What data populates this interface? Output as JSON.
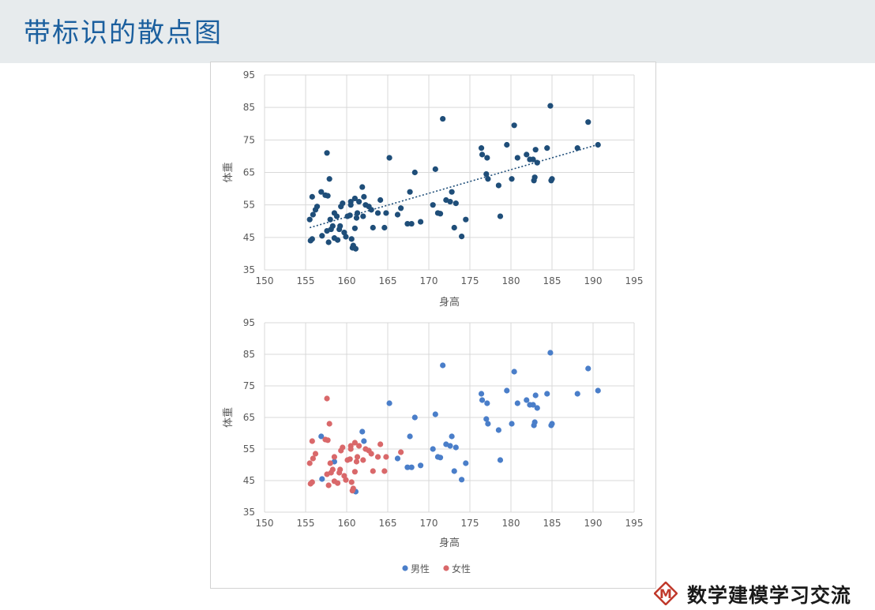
{
  "page": {
    "title": "带标识的散点图",
    "logo_text": "数学建模学习交流",
    "logo_letter": "M",
    "colors": {
      "header_bg": "#e7ebed",
      "title": "#1b5f9e",
      "top_points": "#1f4e79",
      "male": "#4a7ec9",
      "female": "#d9686a",
      "logo_red": "#c0392b"
    }
  },
  "chart_data": [
    {
      "type": "scatter",
      "title": "",
      "xlabel": "身高",
      "ylabel": "体重",
      "xlim": [
        150,
        195
      ],
      "ylim": [
        35,
        95
      ],
      "xticks": [
        "150",
        "155",
        "160",
        "165",
        "170",
        "175",
        "180",
        "185",
        "190",
        "195"
      ],
      "yticks": [
        "95",
        "85",
        "75",
        "65",
        "55",
        "45",
        "35"
      ],
      "grid": true,
      "trendline": {
        "style": "dotted",
        "x": [
          155.5,
          190.5
        ],
        "y": [
          48.0,
          73.5
        ]
      },
      "series": [
        {
          "color": "#1f4e79",
          "points": [
            [
              155.6,
              44
            ],
            [
              155.8,
              44.5
            ],
            [
              155.5,
              50.5
            ],
            [
              155.9,
              52
            ],
            [
              156.2,
              53.5
            ],
            [
              156.4,
              54.5
            ],
            [
              155.8,
              57.5
            ],
            [
              156.9,
              59
            ],
            [
              157.4,
              58
            ],
            [
              157.7,
              57.8
            ],
            [
              157.6,
              71
            ],
            [
              157.9,
              63
            ],
            [
              157.6,
              47
            ],
            [
              157.0,
              45.5
            ],
            [
              157.8,
              43.5
            ],
            [
              158.1,
              47.5
            ],
            [
              158.3,
              48.5
            ],
            [
              158.0,
              50.5
            ],
            [
              158.5,
              52.5
            ],
            [
              158.8,
              51.5
            ],
            [
              158.5,
              44.8
            ],
            [
              158.9,
              44.2
            ],
            [
              159.1,
              47.5
            ],
            [
              159.2,
              48.5
            ],
            [
              159.3,
              54.5
            ],
            [
              159.5,
              55.5
            ],
            [
              159.7,
              46.5
            ],
            [
              159.9,
              45.2
            ],
            [
              160.1,
              51.5
            ],
            [
              160.4,
              51.8
            ],
            [
              160.5,
              56
            ],
            [
              160.5,
              55
            ],
            [
              160.6,
              44.5
            ],
            [
              160.8,
              42.5
            ],
            [
              160.7,
              41.8
            ],
            [
              161.1,
              41.5
            ],
            [
              161.0,
              47.8
            ],
            [
              161.2,
              51
            ],
            [
              161.3,
              52.5
            ],
            [
              161.5,
              56
            ],
            [
              161.0,
              57
            ],
            [
              161.9,
              60.5
            ],
            [
              162.1,
              57.5
            ],
            [
              162.0,
              51.5
            ],
            [
              162.3,
              55
            ],
            [
              162.7,
              54.5
            ],
            [
              163.0,
              53.5
            ],
            [
              163.2,
              48
            ],
            [
              163.8,
              52.5
            ],
            [
              164.1,
              56.5
            ],
            [
              164.6,
              48
            ],
            [
              164.8,
              52.5
            ],
            [
              165.2,
              69.5
            ],
            [
              166.2,
              52
            ],
            [
              166.6,
              54
            ],
            [
              167.4,
              49.2
            ],
            [
              167.7,
              59
            ],
            [
              167.9,
              49.2
            ],
            [
              168.3,
              65
            ],
            [
              169.0,
              49.8
            ],
            [
              170.5,
              55
            ],
            [
              170.8,
              66
            ],
            [
              171.1,
              52.5
            ],
            [
              171.4,
              52.3
            ],
            [
              171.7,
              81.5
            ],
            [
              172.1,
              56.5
            ],
            [
              172.6,
              56
            ],
            [
              172.8,
              59
            ],
            [
              173.1,
              48
            ],
            [
              173.3,
              55.5
            ],
            [
              174.0,
              45.3
            ],
            [
              174.5,
              50.5
            ],
            [
              176.4,
              72.5
            ],
            [
              176.5,
              70.5
            ],
            [
              177.0,
              64.5
            ],
            [
              177.2,
              63
            ],
            [
              177.1,
              69.5
            ],
            [
              178.5,
              61
            ],
            [
              178.7,
              51.5
            ],
            [
              179.5,
              73.5
            ],
            [
              180.1,
              63
            ],
            [
              180.4,
              79.5
            ],
            [
              180.8,
              69.5
            ],
            [
              181.9,
              70.5
            ],
            [
              182.3,
              69
            ],
            [
              182.7,
              69
            ],
            [
              182.8,
              62.5
            ],
            [
              182.9,
              63.5
            ],
            [
              183.0,
              72
            ],
            [
              183.2,
              68
            ],
            [
              184.4,
              72.5
            ],
            [
              184.8,
              85.5
            ],
            [
              184.9,
              62.5
            ],
            [
              185.0,
              63
            ],
            [
              188.1,
              72.5
            ],
            [
              189.4,
              80.5
            ],
            [
              190.6,
              73.5
            ]
          ]
        }
      ]
    },
    {
      "type": "scatter",
      "title": "",
      "xlabel": "身高",
      "ylabel": "体重",
      "xlim": [
        150,
        195
      ],
      "ylim": [
        35,
        95
      ],
      "xticks": [
        "150",
        "155",
        "160",
        "165",
        "170",
        "175",
        "180",
        "185",
        "190",
        "195"
      ],
      "yticks": [
        "95",
        "85",
        "75",
        "65",
        "55",
        "45",
        "35"
      ],
      "grid": true,
      "legend": "bottom",
      "series": [
        {
          "name": "男性",
          "color": "#4a7ec9",
          "points": [
            [
              156.9,
              59
            ],
            [
              157.0,
              45.5
            ],
            [
              158.5,
              51
            ],
            [
              161.1,
              41.5
            ],
            [
              161.9,
              60.5
            ],
            [
              162.1,
              57.5
            ],
            [
              165.2,
              69.5
            ],
            [
              166.2,
              52
            ],
            [
              167.4,
              49.2
            ],
            [
              167.7,
              59
            ],
            [
              167.9,
              49.2
            ],
            [
              168.3,
              65
            ],
            [
              169.0,
              49.8
            ],
            [
              170.5,
              55
            ],
            [
              170.8,
              66
            ],
            [
              171.1,
              52.5
            ],
            [
              171.4,
              52.3
            ],
            [
              171.7,
              81.5
            ],
            [
              172.1,
              56.5
            ],
            [
              172.6,
              56
            ],
            [
              172.8,
              59
            ],
            [
              173.1,
              48
            ],
            [
              173.3,
              55.5
            ],
            [
              174.0,
              45.3
            ],
            [
              174.5,
              50.5
            ],
            [
              176.4,
              72.5
            ],
            [
              176.5,
              70.5
            ],
            [
              177.0,
              64.5
            ],
            [
              177.2,
              63
            ],
            [
              177.1,
              69.5
            ],
            [
              178.5,
              61
            ],
            [
              178.7,
              51.5
            ],
            [
              179.5,
              73.5
            ],
            [
              180.1,
              63
            ],
            [
              180.4,
              79.5
            ],
            [
              180.8,
              69.5
            ],
            [
              181.9,
              70.5
            ],
            [
              182.3,
              69
            ],
            [
              182.7,
              69
            ],
            [
              182.8,
              62.5
            ],
            [
              182.9,
              63.5
            ],
            [
              183.0,
              72
            ],
            [
              183.2,
              68
            ],
            [
              184.4,
              72.5
            ],
            [
              184.8,
              85.5
            ],
            [
              184.9,
              62.5
            ],
            [
              185.0,
              63
            ],
            [
              188.1,
              72.5
            ],
            [
              189.4,
              80.5
            ],
            [
              190.6,
              73.5
            ]
          ]
        },
        {
          "name": "女性",
          "color": "#d9686a",
          "points": [
            [
              155.6,
              44
            ],
            [
              155.8,
              44.5
            ],
            [
              155.5,
              50.5
            ],
            [
              155.9,
              52
            ],
            [
              156.2,
              53.5
            ],
            [
              155.8,
              57.5
            ],
            [
              157.4,
              58
            ],
            [
              157.7,
              57.8
            ],
            [
              157.6,
              71
            ],
            [
              157.9,
              63
            ],
            [
              157.6,
              47
            ],
            [
              157.8,
              43.5
            ],
            [
              158.1,
              47.5
            ],
            [
              158.3,
              48.5
            ],
            [
              158.0,
              50.5
            ],
            [
              158.5,
              52.5
            ],
            [
              158.5,
              44.8
            ],
            [
              158.9,
              44.2
            ],
            [
              159.1,
              47.5
            ],
            [
              159.2,
              48.5
            ],
            [
              159.3,
              54.5
            ],
            [
              159.5,
              55.5
            ],
            [
              159.7,
              46.5
            ],
            [
              159.9,
              45.2
            ],
            [
              160.1,
              51.5
            ],
            [
              160.4,
              51.8
            ],
            [
              160.5,
              56
            ],
            [
              160.5,
              55
            ],
            [
              160.6,
              44.5
            ],
            [
              160.8,
              42.5
            ],
            [
              160.7,
              41.8
            ],
            [
              161.0,
              47.8
            ],
            [
              161.2,
              51
            ],
            [
              161.3,
              52.5
            ],
            [
              161.5,
              56
            ],
            [
              161.0,
              57
            ],
            [
              162.0,
              51.5
            ],
            [
              162.3,
              55
            ],
            [
              162.7,
              54.5
            ],
            [
              163.0,
              53.5
            ],
            [
              163.2,
              48
            ],
            [
              163.8,
              52.5
            ],
            [
              164.1,
              56.5
            ],
            [
              164.6,
              48
            ],
            [
              164.8,
              52.5
            ],
            [
              166.6,
              54
            ]
          ]
        }
      ]
    }
  ]
}
